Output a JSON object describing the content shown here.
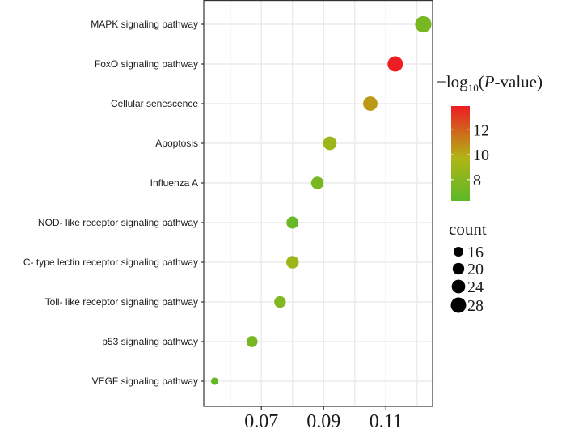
{
  "chart_data": {
    "type": "scatter",
    "subtype": "dot-plot",
    "title": "",
    "xlabel": "",
    "ylabel": "",
    "xlim": [
      0.0515,
      0.125
    ],
    "x_ticks": [
      0.07,
      0.09,
      0.11
    ],
    "x_tick_labels": [
      "0.07",
      "0.09",
      "0.11"
    ],
    "x_minor_grid": [
      0.06,
      0.08,
      0.1,
      0.12
    ],
    "grid": true,
    "categories": [
      "MAPK signaling pathway",
      "FoxO signaling pathway",
      "Cellular senescence",
      "Apoptosis",
      "Influenza A",
      "NOD- like receptor signaling pathway",
      "C- type lectin receptor signaling pathway",
      "Toll- like receptor signaling pathway",
      "p53 signaling pathway",
      "VEGF signaling pathway"
    ],
    "x": [
      0.122,
      0.113,
      0.105,
      0.092,
      0.088,
      0.08,
      0.08,
      0.076,
      0.067,
      0.055
    ],
    "count": [
      30,
      28,
      26,
      24,
      22,
      21,
      22,
      20,
      19,
      11
    ],
    "neg_log10_p": [
      7.5,
      13.9,
      10.5,
      9.0,
      7.5,
      6.8,
      9.0,
      7.8,
      7.5,
      6.5
    ],
    "color_legend": {
      "title_prefix": "−log",
      "title_sub": "10",
      "title_open": "(",
      "title_italic": "P",
      "title_suffix": "-value)",
      "ticks": [
        12,
        10,
        8
      ],
      "tick_labels": [
        "12",
        "10",
        "8"
      ],
      "range": [
        6.3,
        13.9
      ],
      "low_color": "#5cb82a",
      "mid_color": "#b0b514",
      "high_color": "#ee1c24",
      "placement": "right"
    },
    "size_legend": {
      "title": "count",
      "values": [
        16,
        20,
        24,
        28
      ],
      "labels": [
        "16",
        "20",
        "24",
        "28"
      ],
      "color": "#000000",
      "placement": "right"
    }
  }
}
